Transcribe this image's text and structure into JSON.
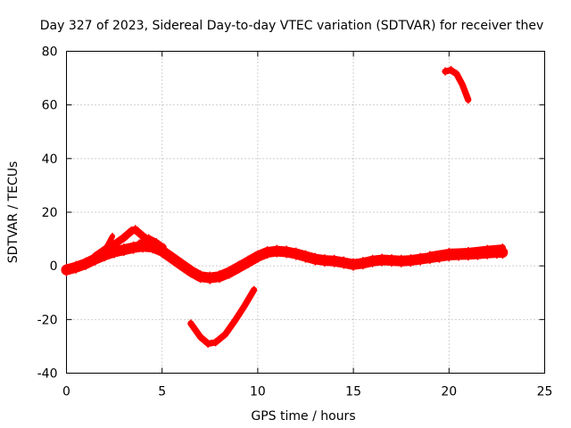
{
  "chart_data": {
    "type": "scatter",
    "title": "Day 327 of 2023, Sidereal Day-to-day VTEC variation (SDTVAR) for receiver thev",
    "xlabel": "GPS time / hours",
    "ylabel": "SDTVAR / TECUs",
    "xlim": [
      0,
      25
    ],
    "ylim": [
      -40,
      80
    ],
    "xticks": [
      0,
      5,
      10,
      15,
      20,
      25
    ],
    "yticks": [
      -40,
      -20,
      0,
      20,
      40,
      60,
      80
    ],
    "grid": true,
    "marker_color": "#ff0000",
    "series": [
      {
        "name": "main-trace",
        "thickness": 2.0,
        "points": [
          [
            0.0,
            -1.5
          ],
          [
            0.5,
            -0.5
          ],
          [
            1.0,
            0.8
          ],
          [
            1.5,
            2.5
          ],
          [
            2.0,
            4.0
          ],
          [
            2.5,
            5.2
          ],
          [
            3.0,
            6.0
          ],
          [
            3.5,
            6.8
          ],
          [
            4.0,
            7.3
          ],
          [
            4.5,
            7.0
          ],
          [
            5.0,
            5.5
          ],
          [
            5.5,
            3.0
          ],
          [
            6.0,
            0.5
          ],
          [
            6.5,
            -2.0
          ],
          [
            7.0,
            -4.0
          ],
          [
            7.5,
            -4.5
          ],
          [
            8.0,
            -4.0
          ],
          [
            8.5,
            -2.5
          ],
          [
            9.0,
            -0.5
          ],
          [
            9.5,
            1.5
          ],
          [
            10.0,
            3.5
          ],
          [
            10.5,
            5.0
          ],
          [
            11.0,
            5.5
          ],
          [
            11.5,
            5.2
          ],
          [
            12.0,
            4.5
          ],
          [
            12.5,
            3.5
          ],
          [
            13.0,
            2.5
          ],
          [
            13.5,
            2.0
          ],
          [
            14.0,
            1.8
          ],
          [
            14.5,
            1.2
          ],
          [
            15.0,
            0.5
          ],
          [
            15.5,
            1.0
          ],
          [
            16.0,
            1.8
          ],
          [
            16.5,
            2.2
          ],
          [
            17.0,
            2.0
          ],
          [
            17.5,
            1.8
          ],
          [
            18.0,
            2.0
          ],
          [
            18.5,
            2.5
          ],
          [
            19.0,
            3.0
          ],
          [
            19.5,
            3.5
          ],
          [
            20.0,
            4.0
          ],
          [
            20.5,
            4.2
          ],
          [
            21.0,
            4.3
          ],
          [
            21.5,
            4.5
          ],
          [
            22.0,
            4.8
          ],
          [
            22.5,
            5.0
          ],
          [
            22.8,
            5.0
          ]
        ]
      },
      {
        "name": "upper-band",
        "thickness": 1.4,
        "points": [
          [
            1.5,
            3.5
          ],
          [
            2.0,
            6.0
          ],
          [
            2.5,
            8.0
          ],
          [
            3.0,
            10.5
          ],
          [
            3.4,
            13.0
          ],
          [
            3.6,
            13.5
          ],
          [
            4.0,
            11.0
          ],
          [
            4.5,
            8.5
          ],
          [
            5.0,
            6.5
          ]
        ]
      },
      {
        "name": "spike-left",
        "thickness": 1.0,
        "points": [
          [
            1.8,
            3.5
          ],
          [
            2.1,
            7.0
          ],
          [
            2.4,
            11.0
          ]
        ]
      },
      {
        "name": "mid-ridge",
        "thickness": 1.0,
        "points": [
          [
            3.8,
            8.5
          ],
          [
            4.3,
            10.5
          ],
          [
            4.7,
            9.0
          ],
          [
            5.1,
            7.0
          ]
        ]
      },
      {
        "name": "right-band",
        "thickness": 1.2,
        "points": [
          [
            19.0,
            4.0
          ],
          [
            20.0,
            5.2
          ],
          [
            21.0,
            5.5
          ],
          [
            22.0,
            6.3
          ],
          [
            22.8,
            6.8
          ]
        ]
      },
      {
        "name": "negative-arc",
        "thickness": 1.2,
        "points": [
          [
            6.5,
            -21.5
          ],
          [
            7.0,
            -26.5
          ],
          [
            7.4,
            -29.0
          ],
          [
            7.8,
            -28.5
          ],
          [
            8.3,
            -25.5
          ],
          [
            8.8,
            -20.5
          ],
          [
            9.3,
            -15.0
          ],
          [
            9.8,
            -9.0
          ]
        ]
      },
      {
        "name": "high-arc",
        "thickness": 1.2,
        "points": [
          [
            19.8,
            72.5
          ],
          [
            20.1,
            73.0
          ],
          [
            20.4,
            71.5
          ],
          [
            20.7,
            67.5
          ],
          [
            21.0,
            62.0
          ]
        ]
      }
    ]
  }
}
